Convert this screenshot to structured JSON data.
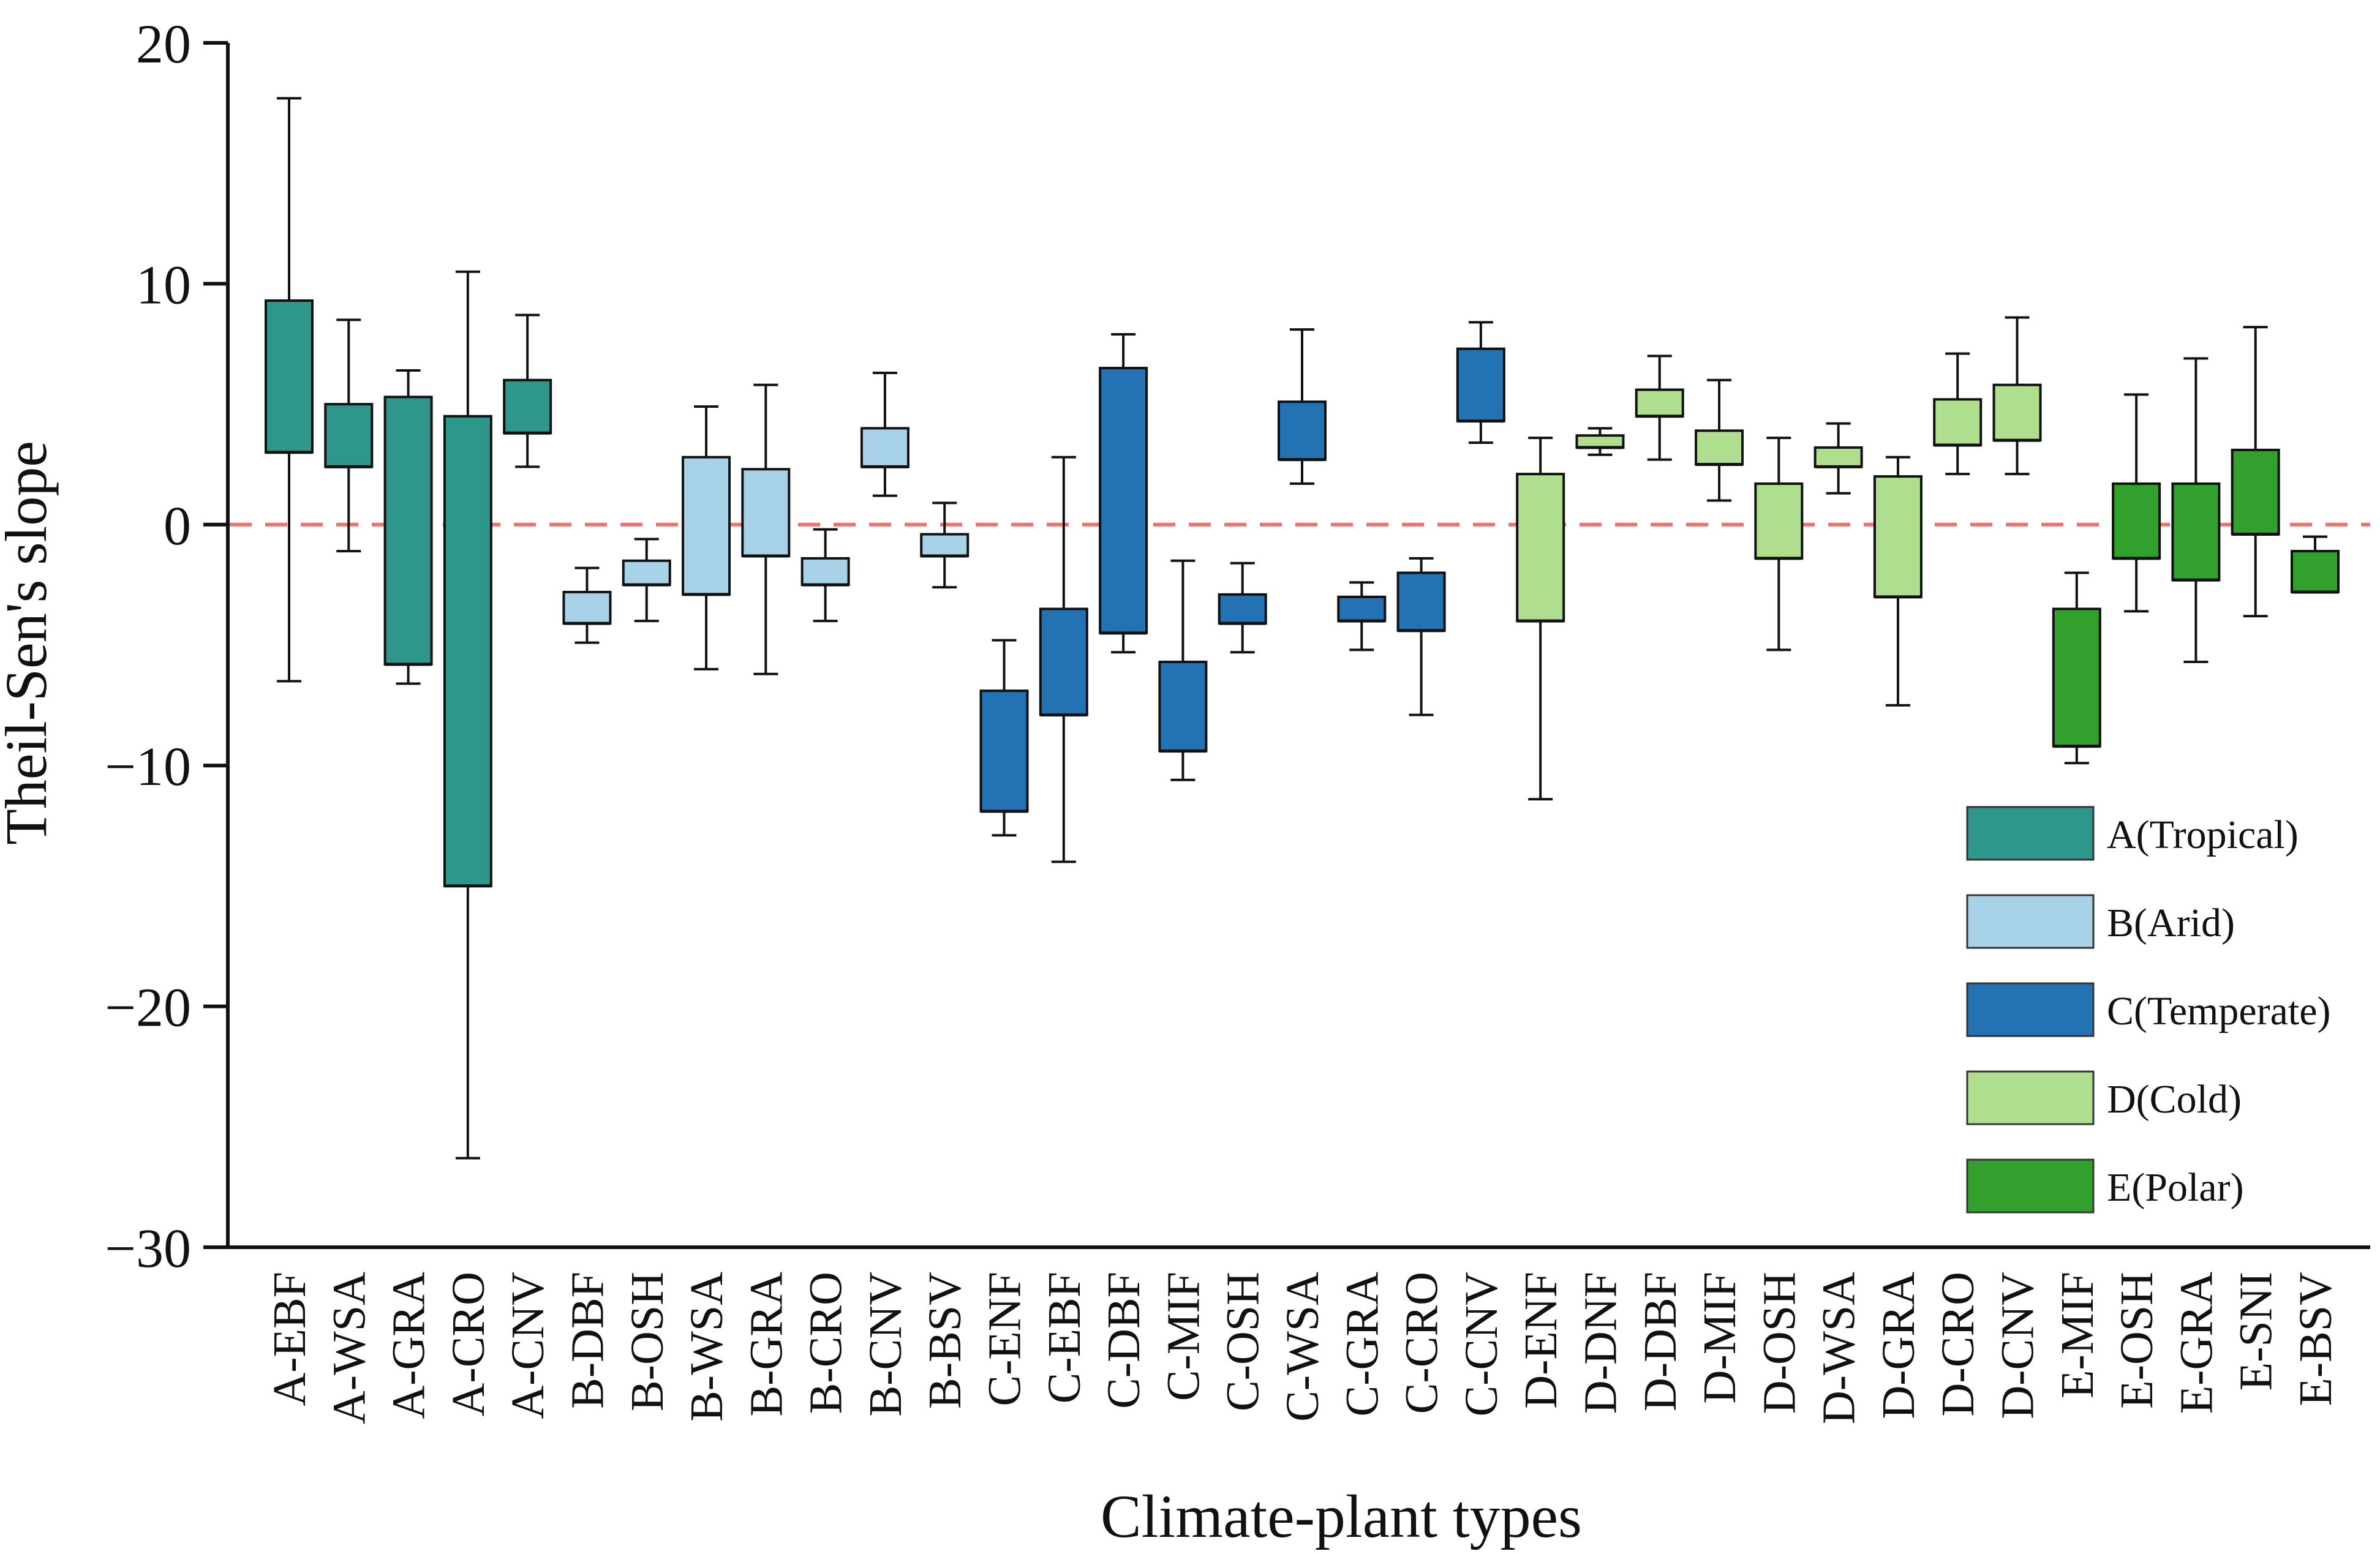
{
  "chart_data": {
    "type": "box",
    "title": "",
    "xlabel": "Climate-plant types",
    "ylabel": "Theil-Sen's slope",
    "ylim": [
      -30,
      20
    ],
    "yticks": [
      20,
      10,
      0,
      -10,
      -20,
      -30
    ],
    "ytick_labels": [
      "20",
      "10",
      "0",
      "−10",
      "−20",
      "−30"
    ],
    "reference_line": {
      "y": 0,
      "style": "dashed",
      "color": "#f07070"
    },
    "legend_position": "bottom-right",
    "groups": [
      {
        "key": "A",
        "label": "A(Tropical)",
        "color": "#2e968a"
      },
      {
        "key": "B",
        "label": "B(Arid)",
        "color": "#a8d2e8"
      },
      {
        "key": "C",
        "label": "C(Temperate)",
        "color": "#2272b4"
      },
      {
        "key": "D",
        "label": "D(Cold)",
        "color": "#aede8e"
      },
      {
        "key": "E",
        "label": "E(Polar)",
        "color": "#32a02c"
      }
    ],
    "boxes": [
      {
        "label": "A-EBF",
        "group": "A",
        "min": -6.5,
        "q1": 3.0,
        "median": 3.0,
        "q3": 9.3,
        "max": 17.7
      },
      {
        "label": "A-WSA",
        "group": "A",
        "min": -1.1,
        "q1": 2.4,
        "median": 2.4,
        "q3": 5.0,
        "max": 8.5
      },
      {
        "label": "A-GRA",
        "group": "A",
        "min": -6.6,
        "q1": -5.8,
        "median": -5.8,
        "q3": 5.3,
        "max": 6.4
      },
      {
        "label": "A-CRO",
        "group": "A",
        "min": -26.3,
        "q1": -15.0,
        "median": -15.0,
        "q3": 4.5,
        "max": 10.5
      },
      {
        "label": "A-CNV",
        "group": "A",
        "min": 2.4,
        "q1": 3.8,
        "median": 3.8,
        "q3": 6.0,
        "max": 8.7
      },
      {
        "label": "B-DBF",
        "group": "B",
        "min": -4.9,
        "q1": -4.1,
        "median": -4.1,
        "q3": -2.8,
        "max": -1.8
      },
      {
        "label": "B-OSH",
        "group": "B",
        "min": -4.0,
        "q1": -2.5,
        "median": -2.5,
        "q3": -1.5,
        "max": -0.6
      },
      {
        "label": "B-WSA",
        "group": "B",
        "min": -6.0,
        "q1": -2.9,
        "median": -2.9,
        "q3": 2.8,
        "max": 4.9
      },
      {
        "label": "B-GRA",
        "group": "B",
        "min": -6.2,
        "q1": -1.3,
        "median": -1.3,
        "q3": 2.3,
        "max": 5.8
      },
      {
        "label": "B-CRO",
        "group": "B",
        "min": -4.0,
        "q1": -2.5,
        "median": -2.5,
        "q3": -1.4,
        "max": -0.2
      },
      {
        "label": "B-CNV",
        "group": "B",
        "min": 1.2,
        "q1": 2.4,
        "median": 2.4,
        "q3": 4.0,
        "max": 6.3
      },
      {
        "label": "B-BSV",
        "group": "B",
        "min": -2.6,
        "q1": -1.3,
        "median": -1.3,
        "q3": -0.4,
        "max": 0.9
      },
      {
        "label": "C-ENF",
        "group": "C",
        "min": -12.9,
        "q1": -11.9,
        "median": -11.9,
        "q3": -6.9,
        "max": -4.8
      },
      {
        "label": "C-EBF",
        "group": "C",
        "min": -14.0,
        "q1": -7.9,
        "median": -7.9,
        "q3": -3.5,
        "max": 2.8
      },
      {
        "label": "C-DBF",
        "group": "C",
        "min": -5.3,
        "q1": -4.5,
        "median": -4.5,
        "q3": 6.5,
        "max": 7.9
      },
      {
        "label": "C-MIF",
        "group": "C",
        "min": -10.6,
        "q1": -9.4,
        "median": -9.4,
        "q3": -5.7,
        "max": -1.5
      },
      {
        "label": "C-OSH",
        "group": "C",
        "min": -5.3,
        "q1": -4.1,
        "median": -4.1,
        "q3": -2.9,
        "max": -1.6
      },
      {
        "label": "C-WSA",
        "group": "C",
        "min": 1.7,
        "q1": 2.7,
        "median": 2.7,
        "q3": 5.1,
        "max": 8.1
      },
      {
        "label": "C-GRA",
        "group": "C",
        "min": -5.2,
        "q1": -4.0,
        "median": -4.0,
        "q3": -3.0,
        "max": -2.4
      },
      {
        "label": "C-CRO",
        "group": "C",
        "min": -7.9,
        "q1": -4.4,
        "median": -4.4,
        "q3": -2.0,
        "max": -1.4
      },
      {
        "label": "C-CNV",
        "group": "C",
        "min": 3.4,
        "q1": 4.3,
        "median": 4.3,
        "q3": 7.3,
        "max": 8.4
      },
      {
        "label": "D-ENF",
        "group": "D",
        "min": -11.4,
        "q1": -4.0,
        "median": -4.0,
        "q3": 2.1,
        "max": 3.6
      },
      {
        "label": "D-DNF",
        "group": "D",
        "min": 2.9,
        "q1": 3.2,
        "median": 3.2,
        "q3": 3.7,
        "max": 4.0
      },
      {
        "label": "D-DBF",
        "group": "D",
        "min": 2.7,
        "q1": 4.5,
        "median": 4.5,
        "q3": 5.6,
        "max": 7.0
      },
      {
        "label": "D-MIF",
        "group": "D",
        "min": 1.0,
        "q1": 2.5,
        "median": 2.5,
        "q3": 3.9,
        "max": 6.0
      },
      {
        "label": "D-OSH",
        "group": "D",
        "min": -5.2,
        "q1": -1.4,
        "median": -1.4,
        "q3": 1.7,
        "max": 3.6
      },
      {
        "label": "D-WSA",
        "group": "D",
        "min": 1.3,
        "q1": 2.4,
        "median": 2.4,
        "q3": 3.2,
        "max": 4.2
      },
      {
        "label": "D-GRA",
        "group": "D",
        "min": -7.5,
        "q1": -3.0,
        "median": -3.0,
        "q3": 2.0,
        "max": 2.8
      },
      {
        "label": "D-CRO",
        "group": "D",
        "min": 2.1,
        "q1": 3.3,
        "median": 3.3,
        "q3": 5.2,
        "max": 7.1
      },
      {
        "label": "D-CNV",
        "group": "D",
        "min": 2.1,
        "q1": 3.5,
        "median": 3.5,
        "q3": 5.8,
        "max": 8.6
      },
      {
        "label": "E-MIF",
        "group": "E",
        "min": -9.9,
        "q1": -9.2,
        "median": -9.2,
        "q3": -3.5,
        "max": -2.0
      },
      {
        "label": "E-OSH",
        "group": "E",
        "min": -3.6,
        "q1": -1.4,
        "median": -1.4,
        "q3": 1.7,
        "max": 5.4
      },
      {
        "label": "E-GRA",
        "group": "E",
        "min": -5.7,
        "q1": -2.3,
        "median": -2.3,
        "q3": 1.7,
        "max": 6.9
      },
      {
        "label": "E-SNI",
        "group": "E",
        "min": -3.8,
        "q1": -0.4,
        "median": -0.4,
        "q3": 3.1,
        "max": 8.2
      },
      {
        "label": "E-BSV",
        "group": "E",
        "min": -2.8,
        "q1": -2.8,
        "median": -2.8,
        "q3": -1.1,
        "max": -0.5
      }
    ]
  }
}
